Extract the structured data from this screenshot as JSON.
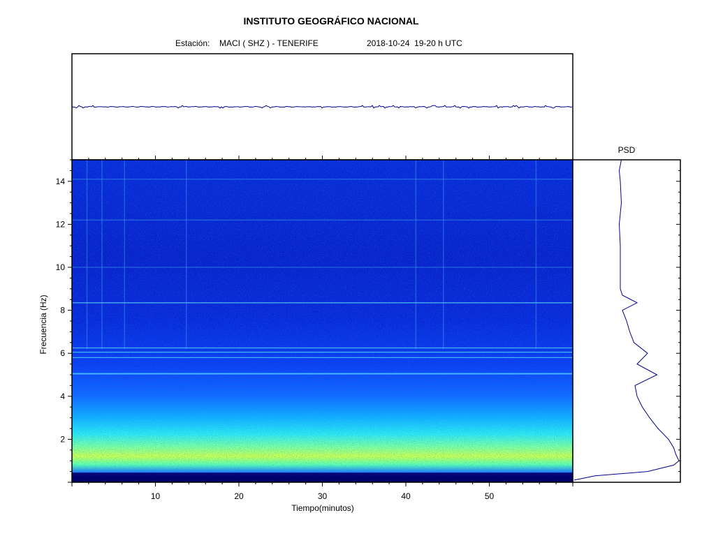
{
  "header": {
    "title": "INSTITUTO GEOGRÁFICO NACIONAL",
    "station_label": "Estación:",
    "station": "MACI ( SHZ ) - TENERIFE",
    "datetime": "2018-10-24  19-20 h UTC"
  },
  "chart_data": [
    {
      "type": "line",
      "role": "seismogram",
      "title": "",
      "xlim": [
        0,
        60
      ],
      "description_values": "flat trace with minor spikes",
      "x": [
        0,
        60
      ],
      "y": [
        0,
        0
      ]
    },
    {
      "type": "heatmap",
      "role": "spectrogram",
      "xlabel": "Tiempo(minutos)",
      "ylabel": "Frecuencia  (Hz)",
      "xlim": [
        0,
        60
      ],
      "ylim": [
        0,
        15
      ],
      "xticks": [
        10,
        20,
        30,
        40,
        50
      ],
      "yticks": [
        2,
        4,
        6,
        8,
        10,
        12,
        14
      ],
      "colormap": [
        "#00008b",
        "#0000ff",
        "#0080ff",
        "#00ffff",
        "#80ff80",
        "#ffff00"
      ],
      "harmonic_lines_hz": [
        5.05,
        5.8,
        6.05,
        6.25,
        8.35,
        10.0,
        12.2,
        14.1
      ]
    },
    {
      "type": "line",
      "role": "psd",
      "title": "PSD",
      "ylim": [
        0,
        15
      ],
      "frequency": [
        0.1,
        0.3,
        0.5,
        0.8,
        1.0,
        1.3,
        1.6,
        2.0,
        2.5,
        3.0,
        3.5,
        4.0,
        4.5,
        5.0,
        5.5,
        6.0,
        6.5,
        7.0,
        7.5,
        8.0,
        8.35,
        8.7,
        9.0,
        10.0,
        11.0,
        12.0,
        13.0,
        14.0,
        14.5,
        15.0
      ],
      "power": [
        0.0,
        0.2,
        0.7,
        0.95,
        1.0,
        0.97,
        0.95,
        0.9,
        0.8,
        0.72,
        0.65,
        0.6,
        0.58,
        0.79,
        0.6,
        0.7,
        0.57,
        0.53,
        0.5,
        0.46,
        0.6,
        0.46,
        0.44,
        0.44,
        0.44,
        0.43,
        0.45,
        0.44,
        0.43,
        0.45
      ]
    }
  ]
}
